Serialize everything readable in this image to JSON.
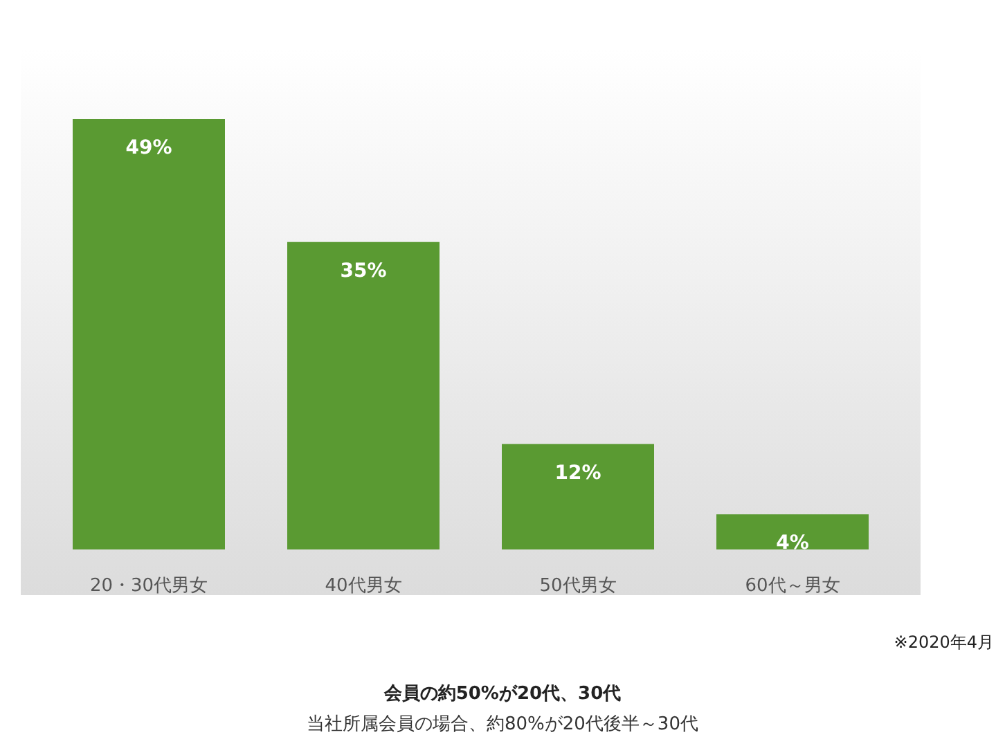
{
  "chart_data": {
    "type": "bar",
    "categories": [
      "20・30代男女",
      "40代男女",
      "50代男女",
      "60代～男女"
    ],
    "values": [
      49,
      35,
      12,
      4
    ],
    "value_labels": [
      "49%",
      "35%",
      "12%",
      "4%"
    ],
    "color": "#5a9a32",
    "title": "会員の約50%が20代、30代",
    "subtitle": "当社所属会員の場合、約80%が20代後半～30代",
    "annotations": [
      "※2020年4月"
    ]
  }
}
